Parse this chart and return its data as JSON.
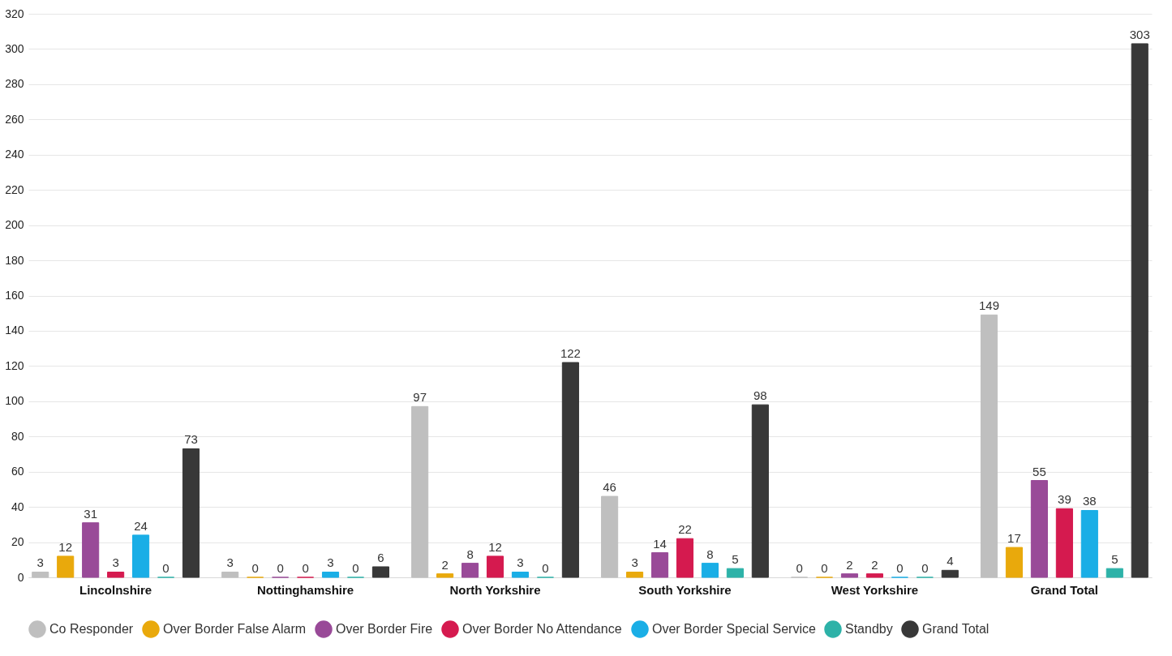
{
  "chart_data": {
    "type": "bar",
    "categories": [
      "Lincolnshire",
      "Nottinghamshire",
      "North Yorkshire",
      "South Yorkshire",
      "West Yorkshire",
      "Grand Total"
    ],
    "series": [
      {
        "name": "Co Responder",
        "color": "#bfbfbf",
        "values": [
          3,
          3,
          97,
          46,
          0,
          149
        ]
      },
      {
        "name": "Over Border False Alarm",
        "color": "#e9a90c",
        "values": [
          12,
          0,
          2,
          3,
          0,
          17
        ]
      },
      {
        "name": "Over Border Fire",
        "color": "#994a98",
        "values": [
          31,
          0,
          8,
          14,
          2,
          55
        ]
      },
      {
        "name": "Over Border No Attendance",
        "color": "#d51a4f",
        "values": [
          3,
          0,
          12,
          22,
          2,
          39
        ]
      },
      {
        "name": "Over Border Special Service",
        "color": "#1aaee6",
        "values": [
          24,
          3,
          3,
          8,
          0,
          38
        ]
      },
      {
        "name": "Standby",
        "color": "#2db2a8",
        "values": [
          0,
          0,
          0,
          5,
          0,
          5
        ]
      },
      {
        "name": "Grand Total",
        "color": "#383838",
        "values": [
          73,
          6,
          122,
          98,
          4,
          303
        ]
      }
    ],
    "ylim": [
      0,
      320
    ],
    "yticks": [
      0,
      20,
      40,
      60,
      80,
      100,
      120,
      140,
      160,
      180,
      200,
      220,
      240,
      260,
      280,
      300,
      320
    ],
    "grid": "y",
    "legend": "bottom",
    "data_labels": true
  }
}
